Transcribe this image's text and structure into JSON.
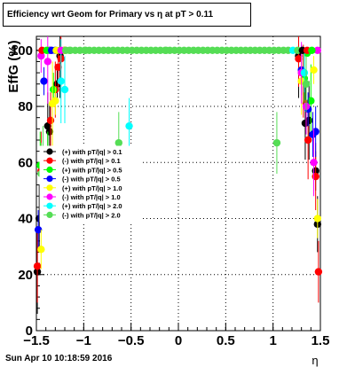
{
  "title": "Efficiency wrt Geom for Primary vs   η at pT > 0.11",
  "footer": "Sun Apr 10 10:18:59 2016",
  "chart_data": {
    "type": "scatter",
    "title": "Efficiency wrt Geom for Primary vs   η at pT > 0.11",
    "xlabel": "η",
    "ylabel": "EffG (%)",
    "xlim": [
      -1.5,
      1.5
    ],
    "ylim": [
      0,
      105
    ],
    "xticks": [
      "−1.5",
      "−1",
      "−0.5",
      "0",
      "0.5",
      "1",
      "1.5"
    ],
    "yticks": [
      "0",
      "20",
      "40",
      "60",
      "80",
      "100"
    ],
    "grid": true,
    "legend_position": "middle-left",
    "series": [
      {
        "name": "(+) with pT/|q| > 0.1",
        "color": "#000000",
        "points": [
          [
            -1.49,
            21
          ],
          [
            -1.47,
            40
          ],
          [
            -1.38,
            73
          ],
          [
            -1.36,
            71
          ],
          [
            -1.28,
            88
          ],
          [
            -1.25,
            98
          ],
          [
            -1.2,
            100
          ],
          [
            1.27,
            98
          ],
          [
            1.34,
            74
          ],
          [
            1.38,
            75
          ],
          [
            1.45,
            57
          ],
          [
            1.47,
            38
          ]
        ]
      },
      {
        "name": "(-) with pT/|q| > 0.1",
        "color": "#ff0000",
        "points": [
          [
            -1.49,
            23
          ],
          [
            -1.45,
            57
          ],
          [
            -1.35,
            75
          ],
          [
            -1.3,
            86
          ],
          [
            -1.27,
            94
          ],
          [
            -1.24,
            97
          ],
          [
            -1.2,
            100
          ],
          [
            1.27,
            97
          ],
          [
            1.32,
            89
          ],
          [
            1.35,
            81
          ],
          [
            1.37,
            68
          ],
          [
            1.45,
            55
          ],
          [
            1.48,
            21
          ]
        ]
      },
      {
        "name": "(+) with pT/|q| > 0.5",
        "color": "#00ff00",
        "points": [
          [
            -1.46,
            59
          ],
          [
            -1.38,
            59
          ],
          [
            -1.32,
            86
          ],
          [
            -1.25,
            100
          ],
          [
            1.33,
            90
          ],
          [
            1.36,
            99
          ],
          [
            1.4,
            82
          ]
        ]
      },
      {
        "name": "(-) with pT/|q| > 0.5",
        "color": "#0000ff",
        "points": [
          [
            -1.48,
            36
          ],
          [
            -1.42,
            89
          ],
          [
            -1.36,
            100
          ],
          [
            -1.3,
            100
          ],
          [
            1.3,
            93
          ],
          [
            1.37,
            79
          ],
          [
            1.42,
            70
          ],
          [
            1.45,
            71
          ]
        ]
      },
      {
        "name": "(+) with pT/|q| > 1.0",
        "color": "#ffff00",
        "points": [
          [
            -1.45,
            29
          ],
          [
            -1.4,
            50
          ],
          [
            -1.33,
            81
          ],
          [
            -1.3,
            82
          ],
          [
            -1.2,
            100
          ],
          [
            1.3,
            89
          ],
          [
            1.43,
            93
          ],
          [
            1.47,
            40
          ]
        ]
      },
      {
        "name": "(-) with pT/|q| > 1.0",
        "color": "#ff00ff",
        "points": [
          [
            -1.45,
            98
          ],
          [
            -1.38,
            96
          ],
          [
            -1.35,
            100
          ],
          [
            1.3,
            92
          ],
          [
            1.35,
            80
          ],
          [
            1.43,
            60
          ],
          [
            1.47,
            100
          ]
        ]
      },
      {
        "name": "(+) with pT/|q| > 2.0",
        "color": "#00ffff",
        "points": [
          [
            -1.28,
            51
          ],
          [
            -1.24,
            89
          ],
          [
            -1.2,
            86
          ],
          [
            -0.52,
            73
          ],
          [
            1.33,
            92
          ]
        ]
      },
      {
        "name": "(-) with pT/|q| > 2.0",
        "color": "#55dd55",
        "points": [
          [
            -1.45,
            56
          ],
          [
            -1.43,
            59
          ],
          [
            -1.15,
            100
          ],
          [
            -0.98,
            100
          ],
          [
            -0.63,
            67
          ],
          [
            -0.13,
            100
          ],
          [
            1.04,
            67
          ],
          [
            1.35,
            88
          ]
        ]
      }
    ]
  }
}
